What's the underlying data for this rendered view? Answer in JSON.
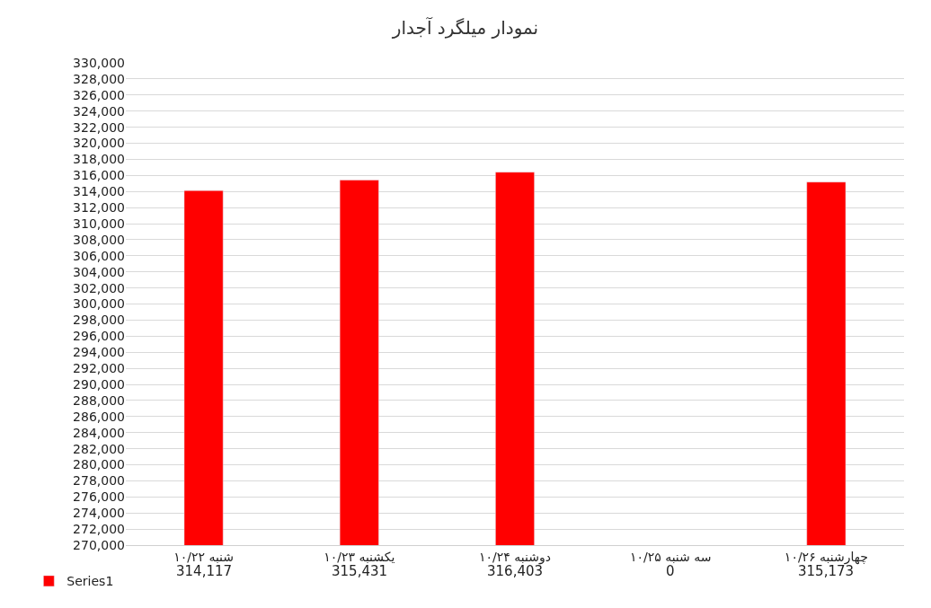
{
  "chart_data": {
    "type": "bar",
    "title": "نمودار میلگرد آجدار",
    "categories": [
      "شنبه ۱۰/۲۲",
      "یکشنبه ۱۰/۲۳",
      "دوشنبه ۱۰/۲۴",
      "سه شنبه ۱۰/۲۵",
      "چهارشنبه ۱۰/۲۶"
    ],
    "series": [
      {
        "name": "Series1",
        "color": "#ff0000",
        "values": [
          314117,
          315431,
          316403,
          null,
          315173
        ],
        "value_labels": [
          "314,117",
          "315,431",
          "316,403",
          "0",
          "315,173"
        ]
      }
    ],
    "ylim": [
      270000,
      330000
    ],
    "yticks": [
      {
        "value": 270000,
        "label": "270,000"
      },
      {
        "value": 272000,
        "label": "272,000"
      },
      {
        "value": 274000,
        "label": "274,000"
      },
      {
        "value": 276000,
        "label": "276,000"
      },
      {
        "value": 278000,
        "label": "278,000"
      },
      {
        "value": 280000,
        "label": "280,000"
      },
      {
        "value": 282000,
        "label": "282,000"
      },
      {
        "value": 284000,
        "label": "284,000"
      },
      {
        "value": 286000,
        "label": "286,000"
      },
      {
        "value": 288000,
        "label": "288,000"
      },
      {
        "value": 290000,
        "label": "290,000"
      },
      {
        "value": 292000,
        "label": "292,000"
      },
      {
        "value": 294000,
        "label": "294,000"
      },
      {
        "value": 296000,
        "label": "296,000"
      },
      {
        "value": 298000,
        "label": "298,000"
      },
      {
        "value": 300000,
        "label": "300,000"
      },
      {
        "value": 302000,
        "label": "302,000"
      },
      {
        "value": 304000,
        "label": "304,000"
      },
      {
        "value": 306000,
        "label": "306,000"
      },
      {
        "value": 308000,
        "label": "308,000"
      },
      {
        "value": 310000,
        "label": "310,000"
      },
      {
        "value": 312000,
        "label": "312,000"
      },
      {
        "value": 314000,
        "label": "314,000"
      },
      {
        "value": 316000,
        "label": "316,000"
      },
      {
        "value": 318000,
        "label": "318,000"
      },
      {
        "value": 320000,
        "label": "320,000"
      },
      {
        "value": 322000,
        "label": "322,000"
      },
      {
        "value": 324000,
        "label": "324,000"
      },
      {
        "value": 326000,
        "label": "326,000"
      },
      {
        "value": 328000,
        "label": "328,000"
      },
      {
        "value": 330000,
        "label": "330,000"
      }
    ],
    "grid": "y",
    "legend": "bottom left"
  }
}
